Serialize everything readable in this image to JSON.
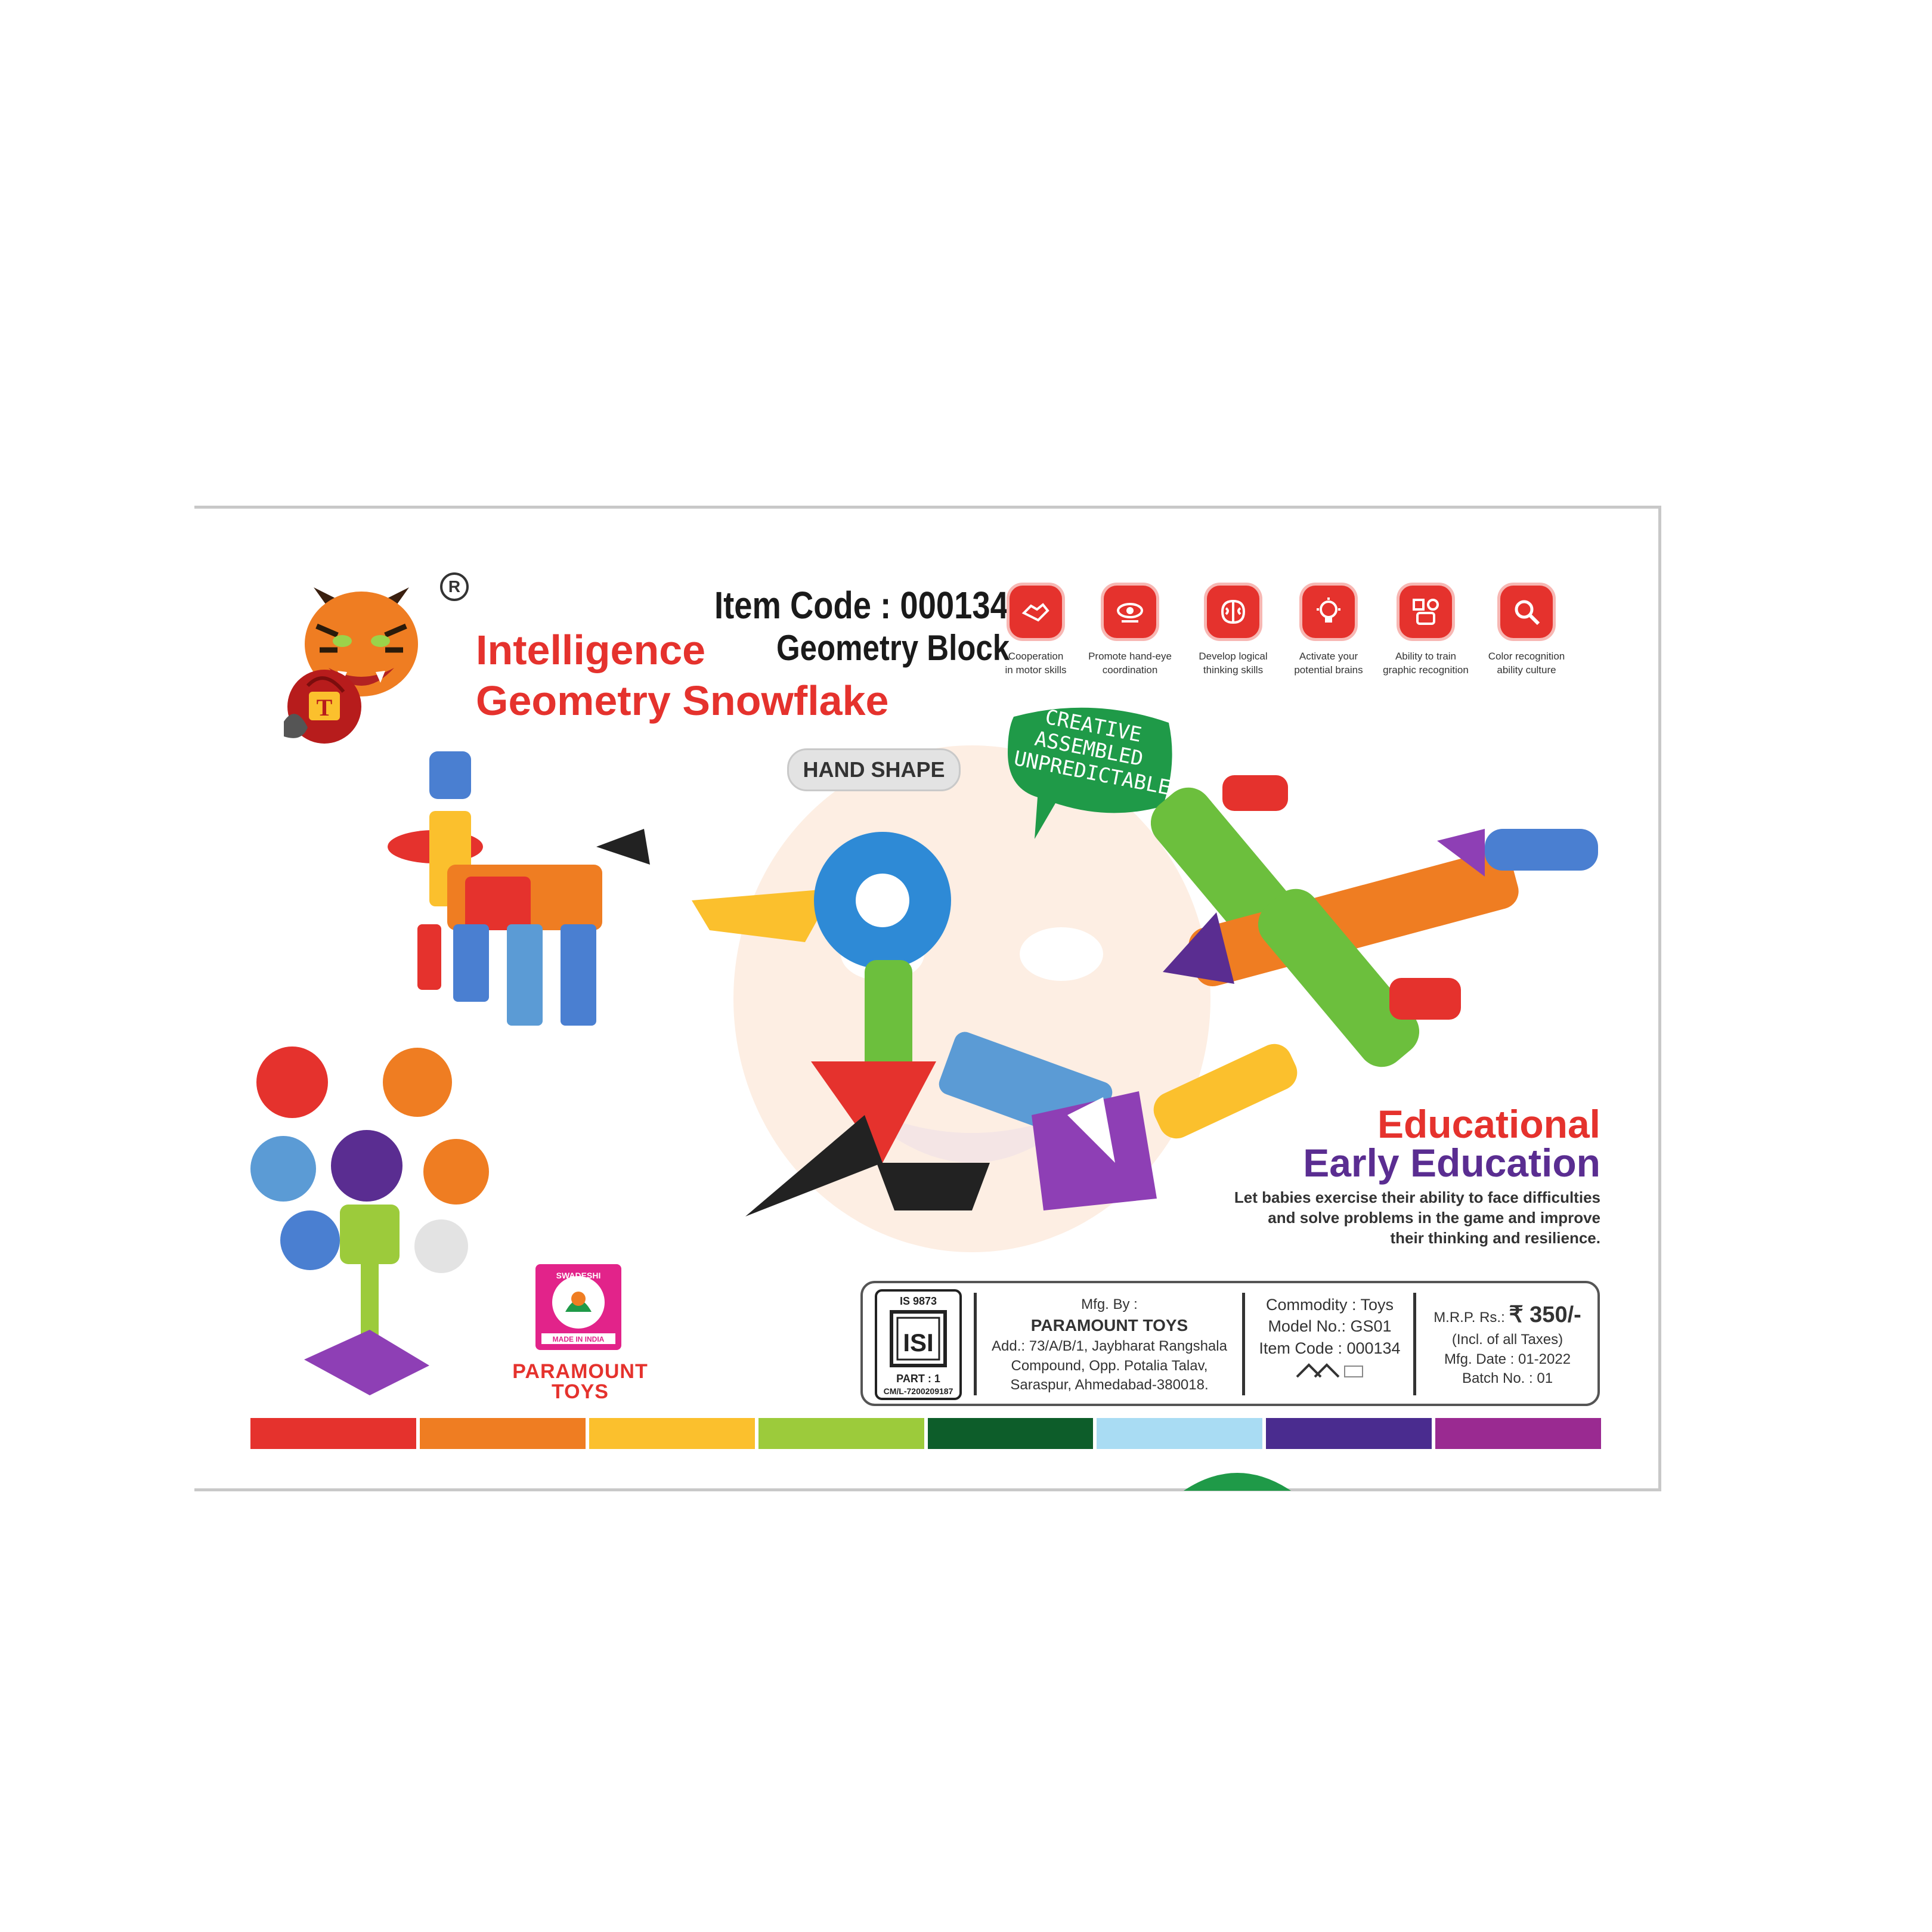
{
  "header": {
    "title_line1": "Intelligence",
    "title_line2": "Geometry Snowflake",
    "item_code": "Item Code : 000134",
    "product_name": "Geometry Block",
    "registered_mark": "R"
  },
  "features": [
    {
      "icon": "handshake-icon",
      "label": "Cooperation\nin motor skills"
    },
    {
      "icon": "hand-eye-icon",
      "label": "Promote hand-eye\ncoordination"
    },
    {
      "icon": "brain-icon",
      "label": "Develop logical\nthinking skills"
    },
    {
      "icon": "lightbulb-icon",
      "label": "Activate your\npotential brains"
    },
    {
      "icon": "shapes-icon",
      "label": "Ability to train\ngraphic recognition"
    },
    {
      "icon": "magnifier-icon",
      "label": "Color recognition\nability culture"
    }
  ],
  "badge": {
    "hand_shape": "HAND SHAPE"
  },
  "speech_bubble": {
    "line1": "CREATIVE",
    "line2": "ASSEMBLED",
    "line3": "UNPREDICTABLE"
  },
  "education": {
    "heading1": "Educational",
    "heading2": "Early Education",
    "description": "Let babies exercise their ability to face difficulties and solve problems in the game and improve their thinking and resilience."
  },
  "brand": {
    "swadeshi_top": "SWADESHI",
    "swadeshi_bottom": "MADE IN INDIA",
    "name_line1": "PARAMOUNT",
    "name_line2": "TOYS"
  },
  "info": {
    "isi_standard": "IS 9873",
    "isi_mark": "ISI",
    "isi_part": "PART : 1",
    "isi_license": "CM/L-7200209187",
    "mfg_by_label": "Mfg. By :",
    "mfg_name": "PARAMOUNT TOYS",
    "address_line1": "Add.: 73/A/B/1, Jaybharat Rangshala",
    "address_line2": "Compound, Opp. Potalia Talav,",
    "address_line3": "Saraspur, Ahmedabad-380018.",
    "commodity": "Commodity : Toys",
    "model_no": "Model No.: GS01",
    "item_code": "Item Code : 000134",
    "mrp_label": "M.R.P. Rs.:",
    "mrp_value": "₹ 350/-",
    "taxes": "(Incl. of all Taxes)",
    "mfg_date": "Mfg. Date : 01-2022",
    "batch_no": "Batch No. : 01"
  },
  "color_strip": [
    "#e5322d",
    "#ef7d22",
    "#fbc02d",
    "#9ccb3b",
    "#0d5d2a",
    "#a9dcf3",
    "#4a2c8f",
    "#9a2a91"
  ],
  "colors": {
    "accent_red": "#e5322d",
    "accent_purple": "#5a2d91",
    "bubble_green": "#1f9a48"
  }
}
